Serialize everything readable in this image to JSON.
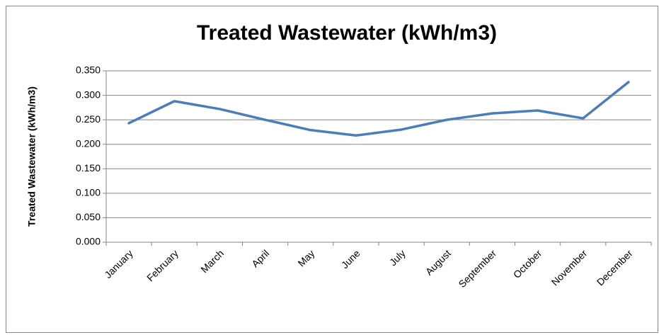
{
  "chart_data": {
    "type": "line",
    "title": "Treated Wastewater (kWh/m3)",
    "y_label": "Treated Wastewater (kWh/m3)",
    "categories": [
      "January",
      "February",
      "March",
      "April",
      "May",
      "June",
      "July",
      "August",
      "September",
      "October",
      "November",
      "December"
    ],
    "series": [
      {
        "name": "Treated Wastewater (kWh/m3)",
        "color": "#4a7ebb",
        "values": [
          0.243,
          0.288,
          0.272,
          0.25,
          0.229,
          0.218,
          0.23,
          0.25,
          0.263,
          0.269,
          0.253,
          0.327
        ]
      }
    ],
    "ylim": [
      0,
      0.35
    ],
    "yticks": [
      {
        "value": 0,
        "label": "0.000"
      },
      {
        "value": 0.05,
        "label": "0.050"
      },
      {
        "value": 0.1,
        "label": "0.100"
      },
      {
        "value": 0.15,
        "label": "0.150"
      },
      {
        "value": 0.2,
        "label": "0.200"
      },
      {
        "value": 0.25,
        "label": "0.250"
      },
      {
        "value": 0.3,
        "label": "0.300"
      },
      {
        "value": 0.35,
        "label": "0.350"
      }
    ],
    "grid": true
  }
}
